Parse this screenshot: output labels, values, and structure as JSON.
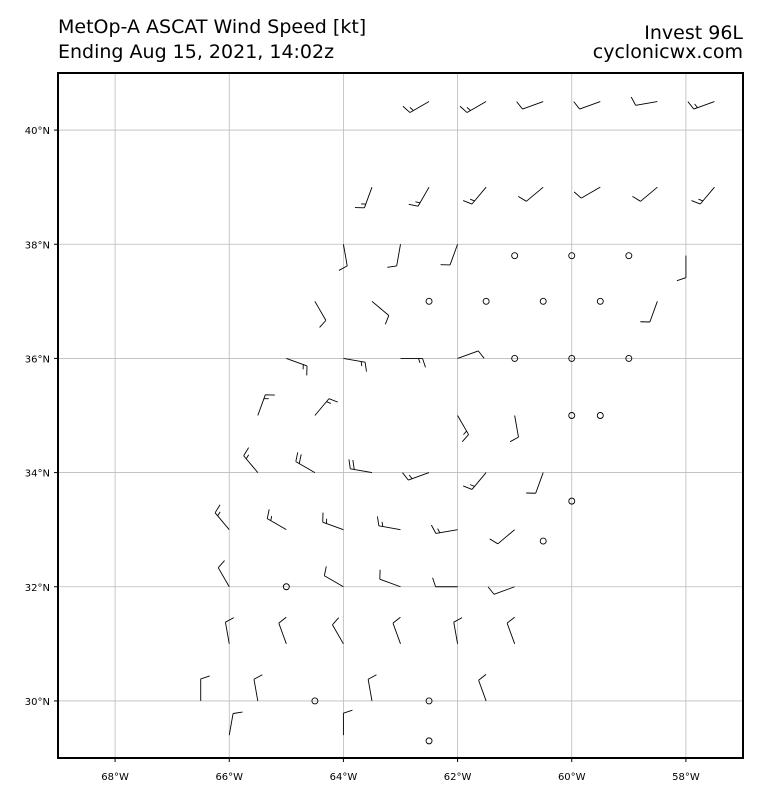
{
  "chart_data": {
    "type": "barbs",
    "title": "MetOp-A ASCAT Wind Speed [kt]",
    "subtitle": "Ending Aug 15, 2021, 14:02z",
    "storm": "Invest 96L",
    "source": "cyclonicwx.com",
    "xlim": [
      -69,
      -57
    ],
    "ylim": [
      29,
      41
    ],
    "grid": true,
    "xticks": [
      {
        "value": -68,
        "label": "68°W"
      },
      {
        "value": -66,
        "label": "66°W"
      },
      {
        "value": -64,
        "label": "64°W"
      },
      {
        "value": -62,
        "label": "62°W"
      },
      {
        "value": -60,
        "label": "60°W"
      },
      {
        "value": -58,
        "label": "58°W"
      }
    ],
    "yticks": [
      {
        "value": 30,
        "label": "30°N"
      },
      {
        "value": 32,
        "label": "32°N"
      },
      {
        "value": 34,
        "label": "34°N"
      },
      {
        "value": 36,
        "label": "36°N"
      },
      {
        "value": 38,
        "label": "38°N"
      },
      {
        "value": 40,
        "label": "40°N"
      }
    ],
    "lon": [
      -62.5,
      -61.5,
      -60.5,
      -59.5,
      -58.5,
      -57.5,
      -63.5,
      -62.5,
      -61.5,
      -60.5,
      -59.5,
      -58.5,
      -57.5,
      -64,
      -63,
      -62,
      -61,
      -60,
      -59,
      -58,
      -64.5,
      -63.5,
      -62.5,
      -61.5,
      -60.5,
      -59.5,
      -58.5,
      -65,
      -64,
      -63,
      -62,
      -61,
      -60,
      -59,
      -65.5,
      -64.5,
      -62,
      -61,
      -60,
      -59.5,
      -65.5,
      -64.5,
      -63.5,
      -62.5,
      -61.5,
      -60.5,
      -60,
      -66,
      -65,
      -64,
      -63,
      -62,
      -61,
      -60.5,
      -66,
      -65,
      -64,
      -63,
      -62,
      -61,
      -66,
      -65,
      -64,
      -63,
      -62,
      -61,
      -66.5,
      -65.5,
      -64.5,
      -63.5,
      -62.5,
      -61.5,
      -66,
      -64,
      -62.5
    ],
    "lat": [
      40.5,
      40.5,
      40.5,
      40.5,
      40.5,
      40.5,
      39,
      39,
      39,
      39,
      39,
      39,
      39,
      38,
      38,
      38,
      37.8,
      37.8,
      37.8,
      37.8,
      37,
      37,
      37,
      37,
      37,
      37,
      37,
      36,
      36,
      36,
      36,
      36,
      36,
      36,
      35,
      35,
      35,
      35,
      35,
      35,
      34,
      34,
      34,
      34,
      34,
      34,
      33.5,
      33,
      33,
      33,
      33,
      33,
      33,
      32.8,
      32,
      32,
      32,
      32,
      32,
      32,
      31,
      31,
      31,
      31,
      31,
      31,
      30,
      30,
      30,
      30,
      30,
      30,
      29.4,
      29.4,
      29.3
    ],
    "direction": [
      240,
      240,
      250,
      250,
      260,
      250,
      200,
      210,
      220,
      230,
      240,
      230,
      220,
      170,
      190,
      200,
      0,
      0,
      0,
      180,
      150,
      130,
      0,
      0,
      0,
      0,
      200,
      110,
      100,
      90,
      70,
      0,
      0,
      0,
      20,
      40,
      150,
      170,
      0,
      0,
      320,
      300,
      280,
      250,
      220,
      200,
      0,
      320,
      300,
      290,
      280,
      260,
      230,
      0,
      330,
      0,
      300,
      290,
      270,
      250,
      350,
      340,
      330,
      340,
      350,
      340,
      0,
      350,
      0,
      350,
      0,
      340,
      10,
      0,
      0
    ],
    "speed": [
      15,
      15,
      10,
      10,
      10,
      15,
      15,
      15,
      15,
      10,
      10,
      10,
      15,
      10,
      10,
      10,
      0,
      0,
      0,
      10,
      10,
      10,
      0,
      0,
      0,
      0,
      10,
      15,
      15,
      15,
      10,
      0,
      0,
      0,
      15,
      15,
      15,
      10,
      0,
      0,
      15,
      20,
      20,
      15,
      15,
      10,
      0,
      15,
      15,
      15,
      15,
      15,
      10,
      0,
      10,
      0,
      10,
      10,
      10,
      10,
      10,
      10,
      10,
      10,
      10,
      10,
      10,
      10,
      0,
      10,
      0,
      10,
      10,
      10,
      0
    ]
  }
}
